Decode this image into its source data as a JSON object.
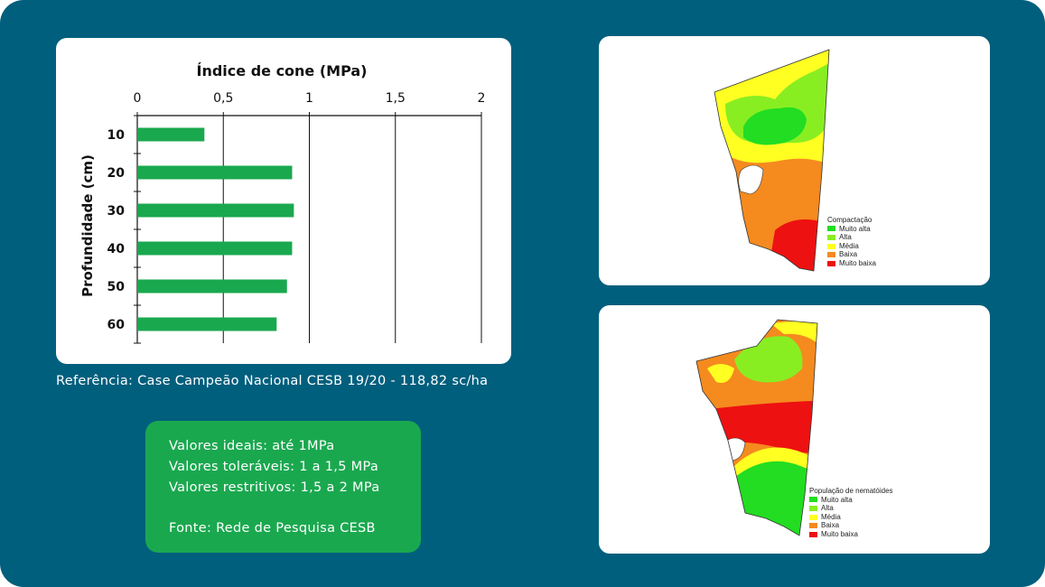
{
  "chart_data": {
    "type": "bar",
    "orientation": "horizontal",
    "title": "Índice de cone (MPa)",
    "ylabel": "Profundidade (cm)",
    "categories": [
      "10",
      "20",
      "30",
      "40",
      "50",
      "60"
    ],
    "values": [
      0.39,
      0.9,
      0.91,
      0.9,
      0.87,
      0.81
    ],
    "xlim": [
      0,
      2
    ],
    "x_ticks": [
      0,
      0.5,
      1,
      1.5,
      2
    ],
    "x_tick_labels": [
      "0",
      "0,5",
      "1",
      "1,5",
      "2"
    ],
    "axis_position": "top",
    "grid": "vertical",
    "bar_color": "#1aa84f"
  },
  "reference_text": "Referência: Case Campeão Nacional CESB 19/20 - 118,82 sc/ha",
  "info_box": {
    "lines": [
      "Valores ideais: até 1MPa",
      "Valores toleráveis: 1 a 1,5 MPa",
      "Valores restritivos: 1,5 a 2 MPa"
    ],
    "source": "Fonte: Rede de Pesquisa CESB"
  },
  "maps": [
    {
      "legend_title": "Compactação",
      "legend_items": [
        {
          "label": "Muito alta",
          "color": "#22dd22"
        },
        {
          "label": "Alta",
          "color": "#88ee22"
        },
        {
          "label": "Média",
          "color": "#ffff22"
        },
        {
          "label": "Baixa",
          "color": "#f58a1f"
        },
        {
          "label": "Muito baixa",
          "color": "#ee1111"
        }
      ]
    },
    {
      "legend_title": "População de nematóides",
      "legend_items": [
        {
          "label": "Muito alta",
          "color": "#22dd22"
        },
        {
          "label": "Alta",
          "color": "#88ee22"
        },
        {
          "label": "Média",
          "color": "#ffff22"
        },
        {
          "label": "Baixa",
          "color": "#f58a1f"
        },
        {
          "label": "Muito baixa",
          "color": "#ee1111"
        }
      ]
    }
  ]
}
